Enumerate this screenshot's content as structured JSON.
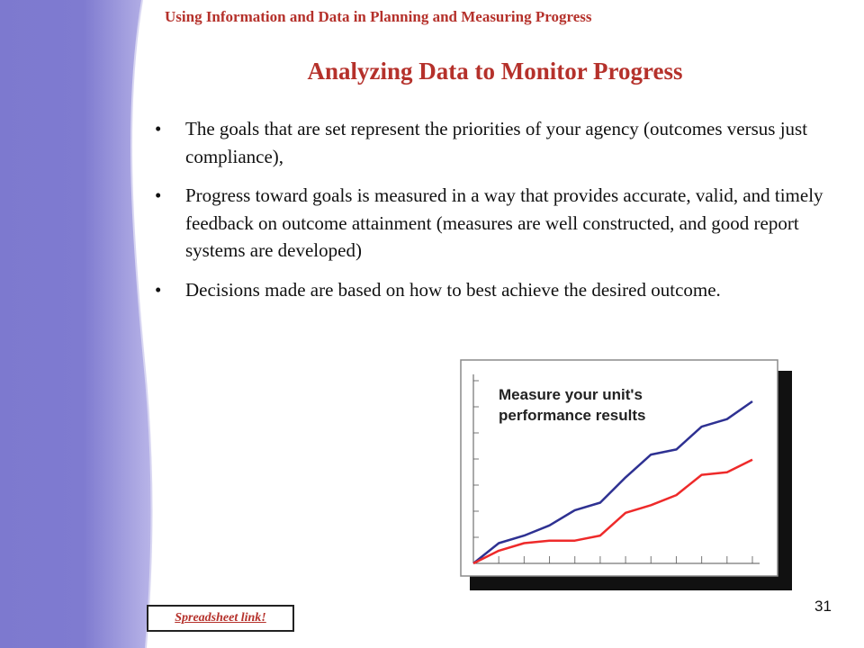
{
  "header": {
    "title": "Using Information and Data in Planning and Measuring Progress"
  },
  "slide": {
    "title": "Analyzing Data to Monitor Progress",
    "bullets": [
      "The goals that are set represent the priorities of your agency (outcomes versus just compliance),",
      "Progress toward goals is measured in a way that provides accurate, valid, and timely feedback on outcome attainment (measures are well constructed, and good report systems are developed)",
      "Decisions made are based on how to best achieve the desired outcome."
    ],
    "bullet_glyph": "•",
    "page_number": "31"
  },
  "link": {
    "label": "Spreadsheet link!"
  },
  "figure": {
    "caption": "Measure your unit's performance results",
    "caption_lines": [
      "Measure your unit's",
      "performance results"
    ],
    "series": [
      {
        "color": "#2e3192",
        "values": [
          0,
          8,
          11,
          15,
          21,
          24,
          34,
          43,
          45,
          54,
          57,
          64
        ]
      },
      {
        "color": "#ee2a2a",
        "values": [
          0,
          5,
          8,
          9,
          9,
          11,
          20,
          23,
          27,
          35,
          36,
          41
        ]
      }
    ]
  },
  "colors": {
    "accent": "#b5312b",
    "band_light": "#b7b3e6",
    "band_dark": "#7b77cc"
  }
}
